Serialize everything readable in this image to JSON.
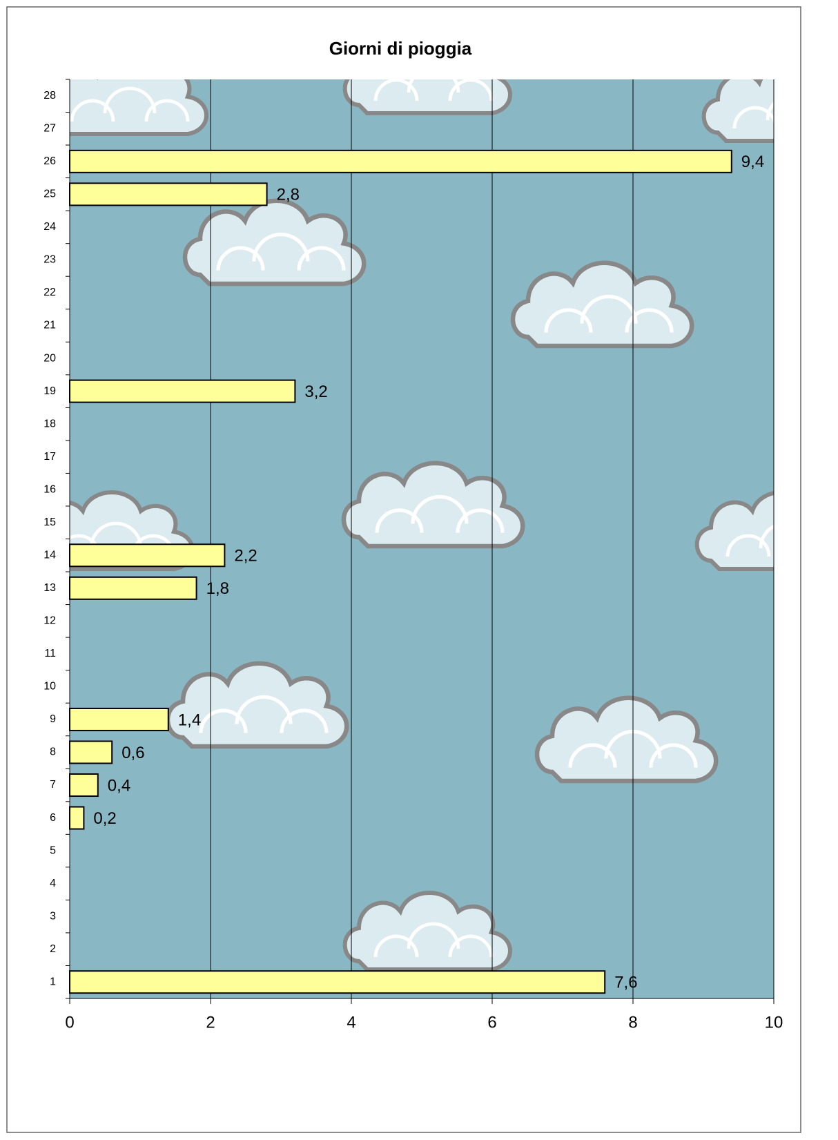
{
  "chart_data": {
    "type": "hbar",
    "title": "Giorni di pioggia",
    "categories": [
      "1",
      "2",
      "3",
      "4",
      "5",
      "6",
      "7",
      "8",
      "9",
      "10",
      "11",
      "12",
      "13",
      "14",
      "15",
      "16",
      "17",
      "18",
      "19",
      "20",
      "21",
      "22",
      "23",
      "24",
      "25",
      "26",
      "27",
      "28"
    ],
    "values": [
      7.6,
      null,
      null,
      null,
      null,
      0.2,
      0.4,
      0.6,
      1.4,
      null,
      null,
      null,
      1.8,
      2.2,
      null,
      null,
      null,
      null,
      3.2,
      null,
      null,
      null,
      null,
      null,
      2.8,
      9.4,
      null,
      null
    ],
    "value_labels": [
      "7,6",
      null,
      null,
      null,
      null,
      "0,2",
      "0,4",
      "0,6",
      "1,4",
      null,
      null,
      null,
      "1,8",
      "2,2",
      null,
      null,
      null,
      null,
      "3,2",
      null,
      null,
      null,
      null,
      null,
      "2,8",
      "9,4",
      null,
      null
    ],
    "color": "#ffff99",
    "xlim": [
      0,
      10
    ],
    "xticks": [
      0,
      2,
      4,
      6,
      8,
      10
    ],
    "grid": true
  }
}
